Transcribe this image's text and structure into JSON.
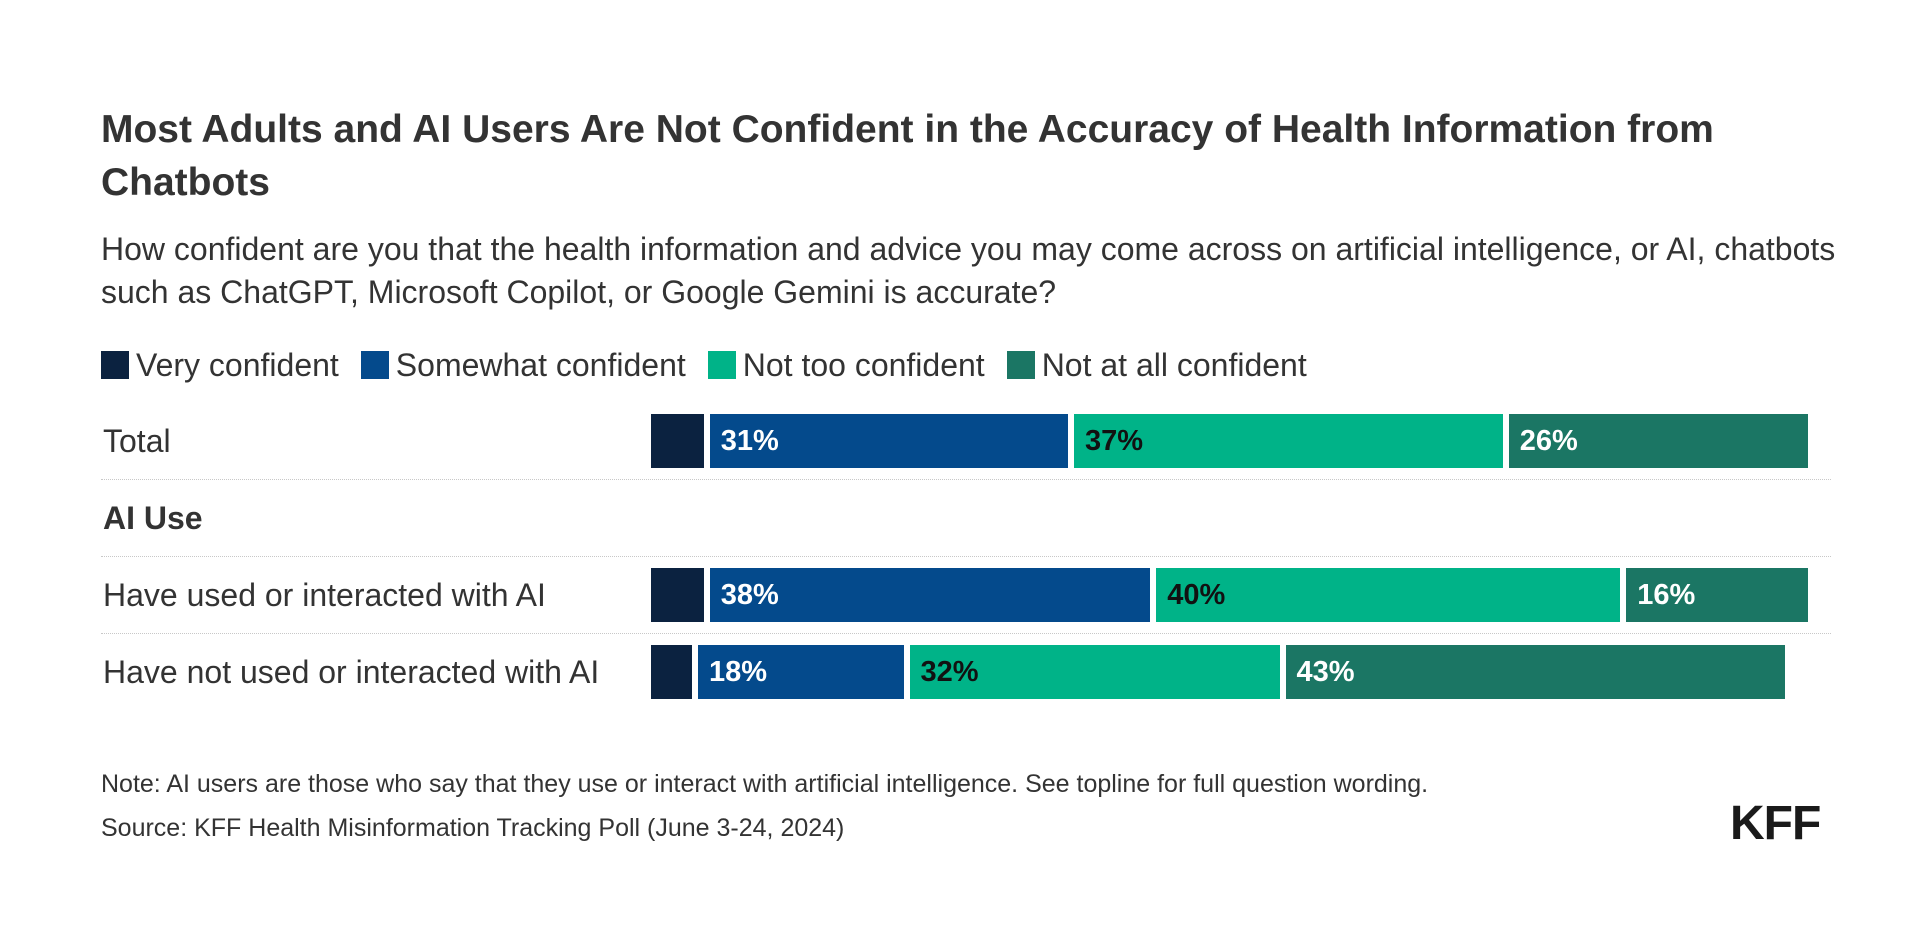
{
  "chart_data": {
    "type": "bar",
    "orientation": "horizontal",
    "stacked": true,
    "title": "Most Adults and AI Users Are Not Confident in the Accuracy of Health Information from Chatbots",
    "subtitle": "How confident are you that the health information and advice you may come across on artificial intelligence, or AI, chatbots such as ChatGPT, Microsoft Copilot, or Google Gemini is accurate?",
    "legend_position": "top-left",
    "series": [
      {
        "name": "Very confident",
        "color": "#0b2240",
        "label_color": "#ffffff"
      },
      {
        "name": "Somewhat confident",
        "color": "#044a8c",
        "label_color": "#ffffff"
      },
      {
        "name": "Not too confident",
        "color": "#00b388",
        "label_color": "#111111"
      },
      {
        "name": "Not at all confident",
        "color": "#1b7664",
        "label_color": "#ffffff"
      }
    ],
    "rows": [
      {
        "label": "Total",
        "type": "bar",
        "values": [
          5,
          31,
          37,
          26
        ],
        "labels": [
          "",
          "31%",
          "37%",
          "26%"
        ]
      },
      {
        "label": "AI Use",
        "type": "group"
      },
      {
        "label": "Have used or interacted with AI",
        "type": "bar",
        "values": [
          5,
          38,
          40,
          16
        ],
        "labels": [
          "",
          "38%",
          "40%",
          "16%"
        ]
      },
      {
        "label": "Have not used or interacted with AI",
        "type": "bar",
        "values": [
          4,
          18,
          32,
          43
        ],
        "labels": [
          "",
          "18%",
          "32%",
          "43%"
        ]
      }
    ],
    "xlim": [
      0,
      100
    ],
    "grid": false
  },
  "note": "Note: AI users are those who say that they use or interact with artificial intelligence. See topline for full question wording.",
  "source": "Source: KFF Health Misinformation Tracking Poll (June 3-24, 2024)",
  "logo": "KFF"
}
